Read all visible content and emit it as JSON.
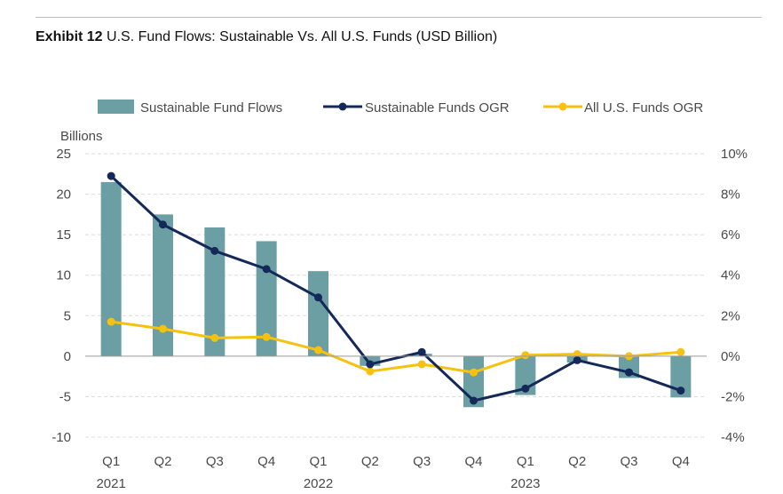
{
  "header": {
    "exhibit": "Exhibit 12",
    "title": "U.S. Fund Flows: Sustainable Vs. All U.S. Funds (USD Billion)"
  },
  "chart_data": {
    "type": "bar+line",
    "left_axis_unit_label": "Billions",
    "categories": [
      "Q1",
      "Q2",
      "Q3",
      "Q4",
      "Q1",
      "Q2",
      "Q3",
      "Q4",
      "Q1",
      "Q2",
      "Q3",
      "Q4"
    ],
    "year_labels": [
      "2021",
      "",
      "",
      "",
      "2022",
      "",
      "",
      "",
      "2023",
      "",
      "",
      ""
    ],
    "ylim_left": [
      -10,
      25
    ],
    "yticks_left": [
      25,
      20,
      15,
      10,
      5,
      0,
      -5,
      -10
    ],
    "yticks_left_labels": [
      "25",
      "20",
      "15",
      "10",
      "5",
      "0",
      "-5",
      "-10"
    ],
    "ylim_right": [
      -4,
      10
    ],
    "yticks_right_labels": [
      "10%",
      "8%",
      "6%",
      "4%",
      "2%",
      "0%",
      "-2%",
      "-4%"
    ],
    "grid": true,
    "legend_position": "top",
    "series": [
      {
        "name": "Sustainable Fund Flows",
        "kind": "bar",
        "axis": "left",
        "color": "#6b9fa3",
        "values": [
          21.5,
          17.5,
          15.9,
          14.2,
          10.5,
          -1.2,
          0.3,
          -6.3,
          -4.8,
          -0.8,
          -2.7,
          -5.1
        ]
      },
      {
        "name": "Sustainable Funds OGR",
        "kind": "line",
        "axis": "right",
        "color": "#14285a",
        "values": [
          8.9,
          6.5,
          5.2,
          4.3,
          2.9,
          -0.4,
          0.2,
          -2.2,
          -1.6,
          -0.2,
          -0.8,
          -1.7
        ]
      },
      {
        "name": "All U.S. Funds OGR",
        "kind": "line",
        "axis": "right",
        "color": "#f7c10f",
        "values": [
          1.7,
          1.35,
          0.9,
          0.95,
          0.3,
          -0.75,
          -0.4,
          -0.8,
          0.05,
          0.1,
          0.0,
          0.2
        ]
      }
    ]
  }
}
